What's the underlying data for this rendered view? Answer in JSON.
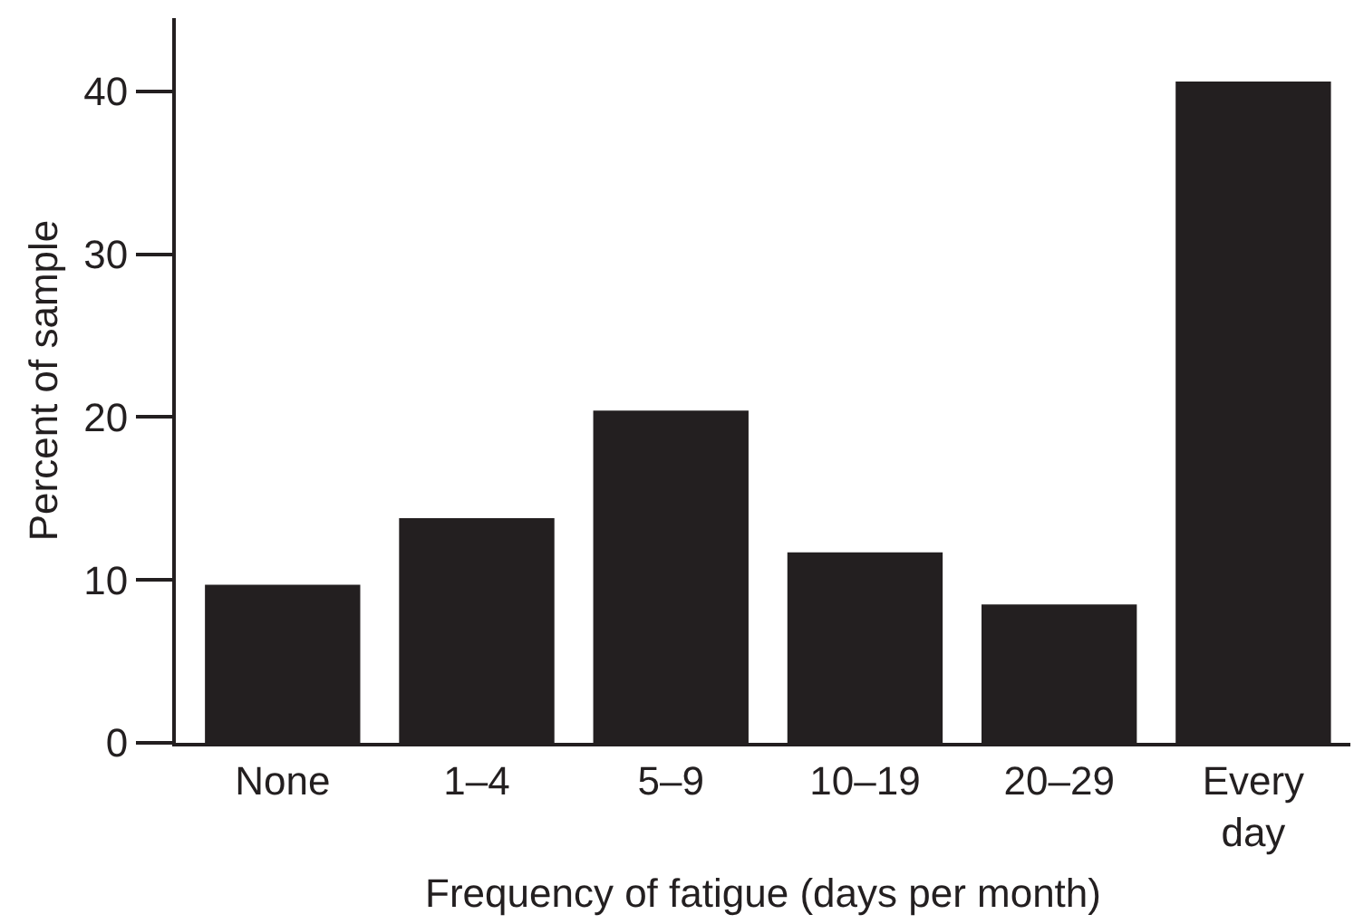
{
  "chart_data": {
    "type": "bar",
    "xlabel": "Frequency of fatigue (days per month)",
    "ylabel": "Percent of sample",
    "categories": [
      "None",
      "1–4",
      "5–9",
      "10–19",
      "20–29",
      "Every day"
    ],
    "values": [
      9.7,
      13.8,
      20.4,
      11.7,
      8.5,
      40.6
    ],
    "color": "#231f20",
    "ylim": [
      0,
      44.5
    ],
    "yticks": [
      0,
      10,
      20,
      30,
      40
    ],
    "grid": false
  }
}
